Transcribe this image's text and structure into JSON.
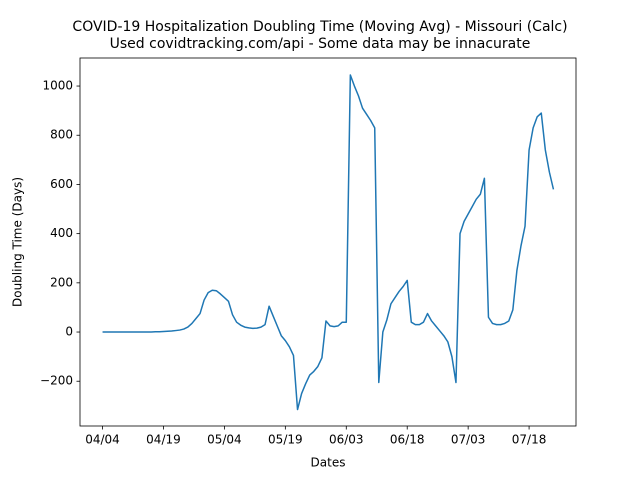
{
  "chart_data": {
    "type": "line",
    "title": "COVID-19 Hospitalization Doubling Time (Moving Avg) - Missouri (Calc)",
    "subtitle": "Used covidtracking.com/api - Some data may be innacurate",
    "xlabel": "Dates",
    "ylabel": "Doubling Time (Days)",
    "x": [
      "04/04",
      "04/05",
      "04/06",
      "04/07",
      "04/08",
      "04/09",
      "04/10",
      "04/11",
      "04/12",
      "04/13",
      "04/14",
      "04/15",
      "04/16",
      "04/17",
      "04/18",
      "04/19",
      "04/20",
      "04/21",
      "04/22",
      "04/23",
      "04/24",
      "04/25",
      "04/26",
      "04/27",
      "04/28",
      "04/29",
      "04/30",
      "05/01",
      "05/02",
      "05/03",
      "05/04",
      "05/05",
      "05/06",
      "05/07",
      "05/08",
      "05/09",
      "05/10",
      "05/11",
      "05/12",
      "05/13",
      "05/14",
      "05/15",
      "05/16",
      "05/17",
      "05/18",
      "05/19",
      "05/20",
      "05/21",
      "05/22",
      "05/23",
      "05/24",
      "05/25",
      "05/26",
      "05/27",
      "05/28",
      "05/29",
      "05/30",
      "05/31",
      "06/01",
      "06/02",
      "06/03",
      "06/04",
      "06/05",
      "06/06",
      "06/07",
      "06/08",
      "06/09",
      "06/10",
      "06/11",
      "06/12",
      "06/13",
      "06/14",
      "06/15",
      "06/16",
      "06/17",
      "06/18",
      "06/19",
      "06/20",
      "06/21",
      "06/22",
      "06/23",
      "06/24",
      "06/25",
      "06/26",
      "06/27",
      "06/28",
      "06/29",
      "06/30",
      "07/01",
      "07/02",
      "07/03",
      "07/04",
      "07/05",
      "07/06",
      "07/07",
      "07/08",
      "07/09",
      "07/10",
      "07/11",
      "07/12",
      "07/13",
      "07/14",
      "07/15",
      "07/16",
      "07/17",
      "07/18",
      "07/19",
      "07/20",
      "07/21",
      "07/22",
      "07/23",
      "07/24"
    ],
    "values": [
      0,
      0,
      0,
      0,
      0,
      0,
      0,
      0,
      0,
      0,
      0,
      0,
      0,
      1,
      1,
      2,
      3,
      4,
      6,
      8,
      12,
      20,
      35,
      55,
      75,
      130,
      160,
      170,
      168,
      155,
      140,
      125,
      70,
      40,
      28,
      20,
      17,
      15,
      16,
      20,
      30,
      105,
      65,
      25,
      -15,
      -35,
      -60,
      -95,
      -315,
      -250,
      -210,
      -175,
      -160,
      -140,
      -105,
      45,
      25,
      22,
      25,
      40,
      40,
      1045,
      1000,
      960,
      910,
      885,
      860,
      830,
      -205,
      0,
      50,
      115,
      140,
      165,
      185,
      210,
      40,
      30,
      30,
      40,
      75,
      45,
      25,
      5,
      -15,
      -40,
      -100,
      -205,
      400,
      450,
      480,
      510,
      540,
      560,
      625,
      60,
      35,
      30,
      30,
      35,
      45,
      90,
      250,
      350,
      430,
      740,
      830,
      875,
      890,
      740,
      650,
      580
    ],
    "color": "#1f77b4",
    "xticks": [
      "04/04",
      "04/19",
      "05/04",
      "05/19",
      "06/03",
      "06/18",
      "07/03",
      "07/18"
    ],
    "ylim": [
      -382,
      1114
    ],
    "yticks": [
      {
        "value": -200,
        "label": "−200"
      },
      0,
      200,
      400,
      600,
      800,
      1000
    ]
  }
}
